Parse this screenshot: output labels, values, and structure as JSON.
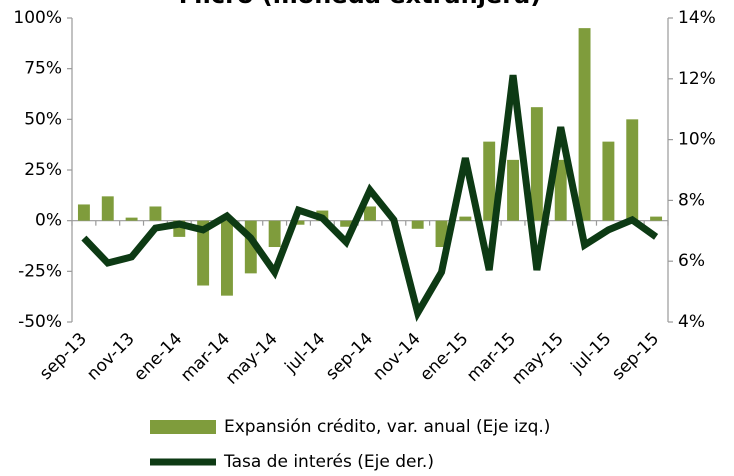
{
  "chart_data": {
    "type": "bar-line",
    "title": "Micro (moneda extranjera)",
    "categories": [
      "sep-13",
      null,
      "nov-13",
      null,
      "ene-14",
      null,
      "mar-14",
      null,
      "may-14",
      null,
      "jul-14",
      null,
      "sep-14",
      null,
      "nov-14",
      null,
      "ene-15",
      null,
      "mar-15",
      null,
      "may-15",
      null,
      "jul-15",
      null,
      "sep-15"
    ],
    "series": [
      {
        "name": "Expansión crédito, var. anual (Eje izq.)",
        "type": "bar",
        "color": "#7f9c3c",
        "values": [
          8,
          12,
          1.5,
          7,
          -8,
          -32,
          -37,
          -26,
          -13,
          -2,
          5,
          -3,
          7,
          0,
          -4,
          -13,
          2,
          39,
          30,
          56,
          30,
          95,
          39,
          50,
          2
        ]
      },
      {
        "name": "Tasa de interés (Eje der.)",
        "type": "line",
        "axis": "y2",
        "color": "#0d3a14",
        "values": [
          6.76,
          5.94,
          6.14,
          7.09,
          7.22,
          7.03,
          7.49,
          6.76,
          5.64,
          7.68,
          7.42,
          6.63,
          8.34,
          7.36,
          4.3,
          5.64,
          9.39,
          5.71,
          12.12,
          5.71,
          10.41,
          6.53,
          7.03,
          7.36,
          6.8
        ]
      }
    ],
    "ylim": [
      -50,
      100
    ],
    "yticks": [
      {
        "value": -50,
        "label": "-50%"
      },
      {
        "value": -25,
        "label": "-25%"
      },
      {
        "value": 0,
        "label": "0%"
      },
      {
        "value": 25,
        "label": "25%"
      },
      {
        "value": 50,
        "label": "50%"
      },
      {
        "value": 75,
        "label": "75%"
      },
      {
        "value": 100,
        "label": "100%"
      }
    ],
    "y2lim": [
      4,
      14
    ],
    "y2ticks": [
      {
        "value": 4,
        "label": "4%"
      },
      {
        "value": 6,
        "label": "6%"
      },
      {
        "value": 8,
        "label": "8%"
      },
      {
        "value": 10,
        "label": "10%"
      },
      {
        "value": 12,
        "label": "12%"
      },
      {
        "value": 14,
        "label": "14%"
      }
    ]
  }
}
